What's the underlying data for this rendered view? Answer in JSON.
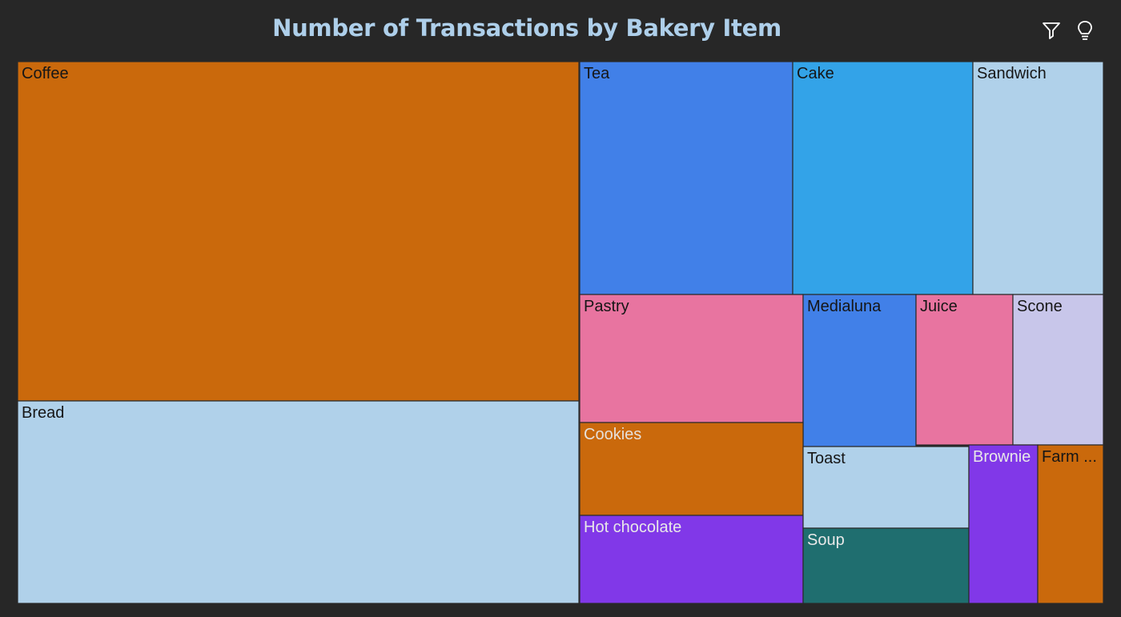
{
  "title": "Number of Transactions by Bakery Item",
  "toolbar": {
    "filter_icon": "filter-icon",
    "insight_icon": "lightbulb-icon"
  },
  "chart_data": {
    "type": "treemap",
    "title": "Number of Transactions by Bakery Item",
    "items": [
      {
        "label": "Coffee",
        "value": 5471,
        "color": "#ca690c"
      },
      {
        "label": "Bread",
        "value": 3325,
        "color": "#b0d1ea"
      },
      {
        "label": "Tea",
        "value": 1435,
        "color": "#4180e8"
      },
      {
        "label": "Cake",
        "value": 1025,
        "color": "#33a3e8"
      },
      {
        "label": "Sandwich",
        "value": 771,
        "color": "#b0d1ea"
      },
      {
        "label": "Pastry",
        "value": 856,
        "color": "#e874a0"
      },
      {
        "label": "Medialuna",
        "value": 616,
        "color": "#4180e8"
      },
      {
        "label": "Juice",
        "value": 369,
        "color": "#e874a0"
      },
      {
        "label": "Scone",
        "value": 327,
        "color": "#c8c6ea"
      },
      {
        "label": "Cookies",
        "value": 540,
        "color": "#ca690c"
      },
      {
        "label": "Hot chocolate",
        "value": 590,
        "color": "#8138e8"
      },
      {
        "label": "Toast",
        "value": 318,
        "color": "#b0d1ea"
      },
      {
        "label": "Soup",
        "value": 326,
        "color": "#1f6e6f"
      },
      {
        "label": "Brownie",
        "value": 379,
        "color": "#8138e8"
      },
      {
        "label": "Farm ...",
        "value": 374,
        "color": "#ca690c"
      }
    ]
  }
}
